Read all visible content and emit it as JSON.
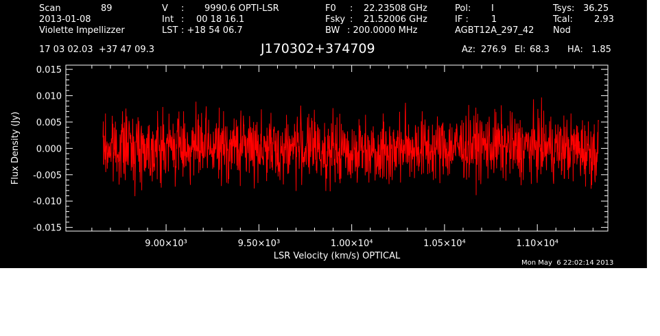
{
  "header": {
    "row1": {
      "scan_label": "Scan",
      "scan_value": "89",
      "v_label": "V",
      "v_sep": ":",
      "v_value": "9990.6 OPTI-LSR",
      "f0_label": "F0",
      "f0_sep": ":",
      "f0_value": "22.23508 GHz",
      "pol_label": "Pol:",
      "pol_value": "I",
      "tsys_label": "Tsys:",
      "tsys_value": "36.25"
    },
    "row2": {
      "date": "2013-01-08",
      "int_label": "Int",
      "int_sep": ":",
      "int_value": "00 18 16.1",
      "fsky_label": "Fsky",
      "fsky_sep": ":",
      "fsky_value": "21.52006 GHz",
      "if_label": "IF :",
      "if_value": "1",
      "tcal_label": "Tcal:",
      "tcal_value": "2.93"
    },
    "row3": {
      "observer": "Violette Impellizzer",
      "lst_label": "LST",
      "lst_value": ": +18 54 06.7",
      "bw_label": "BW",
      "bw_value": ": 200.0000 MHz",
      "project": "AGBT12A_297_42",
      "proc": "Nod"
    },
    "row4": {
      "coords": "17 03 02.03  +37 47 09.3",
      "source": "J170302+374709",
      "az_label": "Az:",
      "az_value": "276.9",
      "el_label": "El:",
      "el_value": "68.3",
      "ha_label": "HA:",
      "ha_value": "1.85"
    }
  },
  "footer": {
    "timestamp": "Mon May  6 22:02:14 2013"
  },
  "colors": {
    "background": "#000000",
    "axes": "#ffffff",
    "trace": "#ff0000",
    "text": "#ffffff"
  },
  "chart_data": {
    "type": "line",
    "title": "",
    "xlabel": "LSR Velocity (km/s) OPTICAL",
    "ylabel": "Flux Density (Jy)",
    "xlim": [
      8460,
      11380
    ],
    "ylim": [
      -0.0157,
      0.0158
    ],
    "x_range": [
      8660,
      11330
    ],
    "noise_rms": 0.0031,
    "x_ticks": [
      9000,
      9500,
      10000,
      10500,
      11000
    ],
    "x_tick_labels": [
      "9.00×10³",
      "9.50×10³",
      "1.00×10⁴",
      "1.05×10⁴",
      "1.10×10⁴"
    ],
    "y_ticks": [
      -0.015,
      -0.01,
      -0.005,
      0.0,
      0.005,
      0.01,
      0.015
    ],
    "y_tick_labels": [
      "-0.015",
      "-0.010",
      "-0.005",
      "0.000",
      "0.005",
      "0.010",
      "0.015"
    ],
    "series": [
      {
        "color": "#ff0000",
        "x": [
          8700,
          8800,
          8900,
          9000,
          9100,
          9200,
          9300,
          9400,
          9500,
          9600,
          9700,
          9800,
          9900,
          10000,
          10100,
          10200,
          10300,
          10400,
          10500,
          10600,
          10700,
          10800,
          10900,
          11000,
          11100,
          11200,
          11300
        ],
        "y": [
          0.0,
          0.0005,
          0.0,
          0.0002,
          0.0005,
          0.0,
          0.0,
          0.0005,
          0.0005,
          -0.0005,
          0.0005,
          0.0,
          -0.001,
          -0.0005,
          0.0,
          -0.0005,
          0.0005,
          0.0,
          0.0,
          0.0005,
          0.0005,
          0.0005,
          0.0,
          0.0005,
          0.0,
          0.0,
          -0.0005
        ]
      }
    ]
  }
}
